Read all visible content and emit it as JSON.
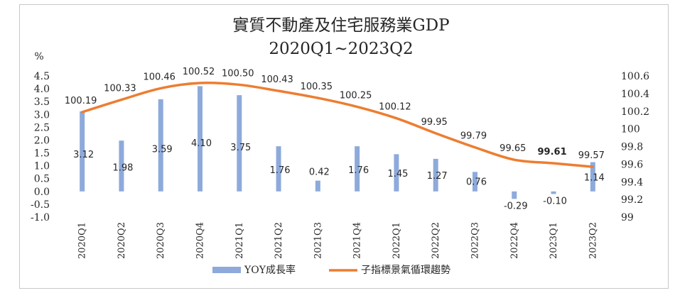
{
  "chart_data": {
    "type": "bar+line",
    "title": "實質不動產及住宅服務業GDP",
    "subtitle": "2020Q1~2023Q2",
    "y_unit_label": "%",
    "categories": [
      "2020Q1",
      "2020Q2",
      "2020Q3",
      "2020Q4",
      "2021Q1",
      "2021Q2",
      "2021Q3",
      "2021Q4",
      "2022Q1",
      "2022Q2",
      "2022Q3",
      "2022Q4",
      "2023Q1",
      "2023Q2"
    ],
    "left_axis": {
      "min": -1.0,
      "max": 4.5,
      "step": 0.5,
      "ticks": [
        "4.5",
        "4.0",
        "3.5",
        "3.0",
        "2.5",
        "2.0",
        "1.5",
        "1.0",
        "0.5",
        "0.0",
        "-0.5",
        "-1.0"
      ]
    },
    "right_axis": {
      "min": 99,
      "max": 100.6,
      "step": 0.2,
      "ticks": [
        "100.6",
        "100.4",
        "100.2",
        "100",
        "99.8",
        "99.6",
        "99.4",
        "99.2",
        "99"
      ]
    },
    "series": [
      {
        "name": "YOY成長率",
        "kind": "bar",
        "axis": "left",
        "color": "#8eaadb",
        "values": [
          3.12,
          1.98,
          3.59,
          4.1,
          3.75,
          1.76,
          0.42,
          1.76,
          1.45,
          1.27,
          0.76,
          -0.29,
          -0.1,
          1.14
        ],
        "labels": [
          "3.12",
          "1.98",
          "3.59",
          "4.10",
          "3.75",
          "1.76",
          "0.42",
          "1.76",
          "1.45",
          "1.27",
          "0.76",
          "-0.29",
          "-0.10",
          "1.14"
        ]
      },
      {
        "name": "子指標景氣循環趨勢",
        "kind": "line",
        "axis": "right",
        "color": "#ed7d31",
        "values": [
          100.19,
          100.33,
          100.46,
          100.52,
          100.5,
          100.43,
          100.35,
          100.25,
          100.12,
          99.95,
          99.79,
          99.65,
          99.61,
          99.57
        ],
        "labels": [
          "100.19",
          "100.33",
          "100.46",
          "100.52",
          "100.50",
          "100.43",
          "100.35",
          "100.25",
          "100.12",
          "99.95",
          "99.79",
          "99.65",
          "99.61",
          "99.57"
        ]
      }
    ],
    "legend": "bottom",
    "grid": false
  }
}
